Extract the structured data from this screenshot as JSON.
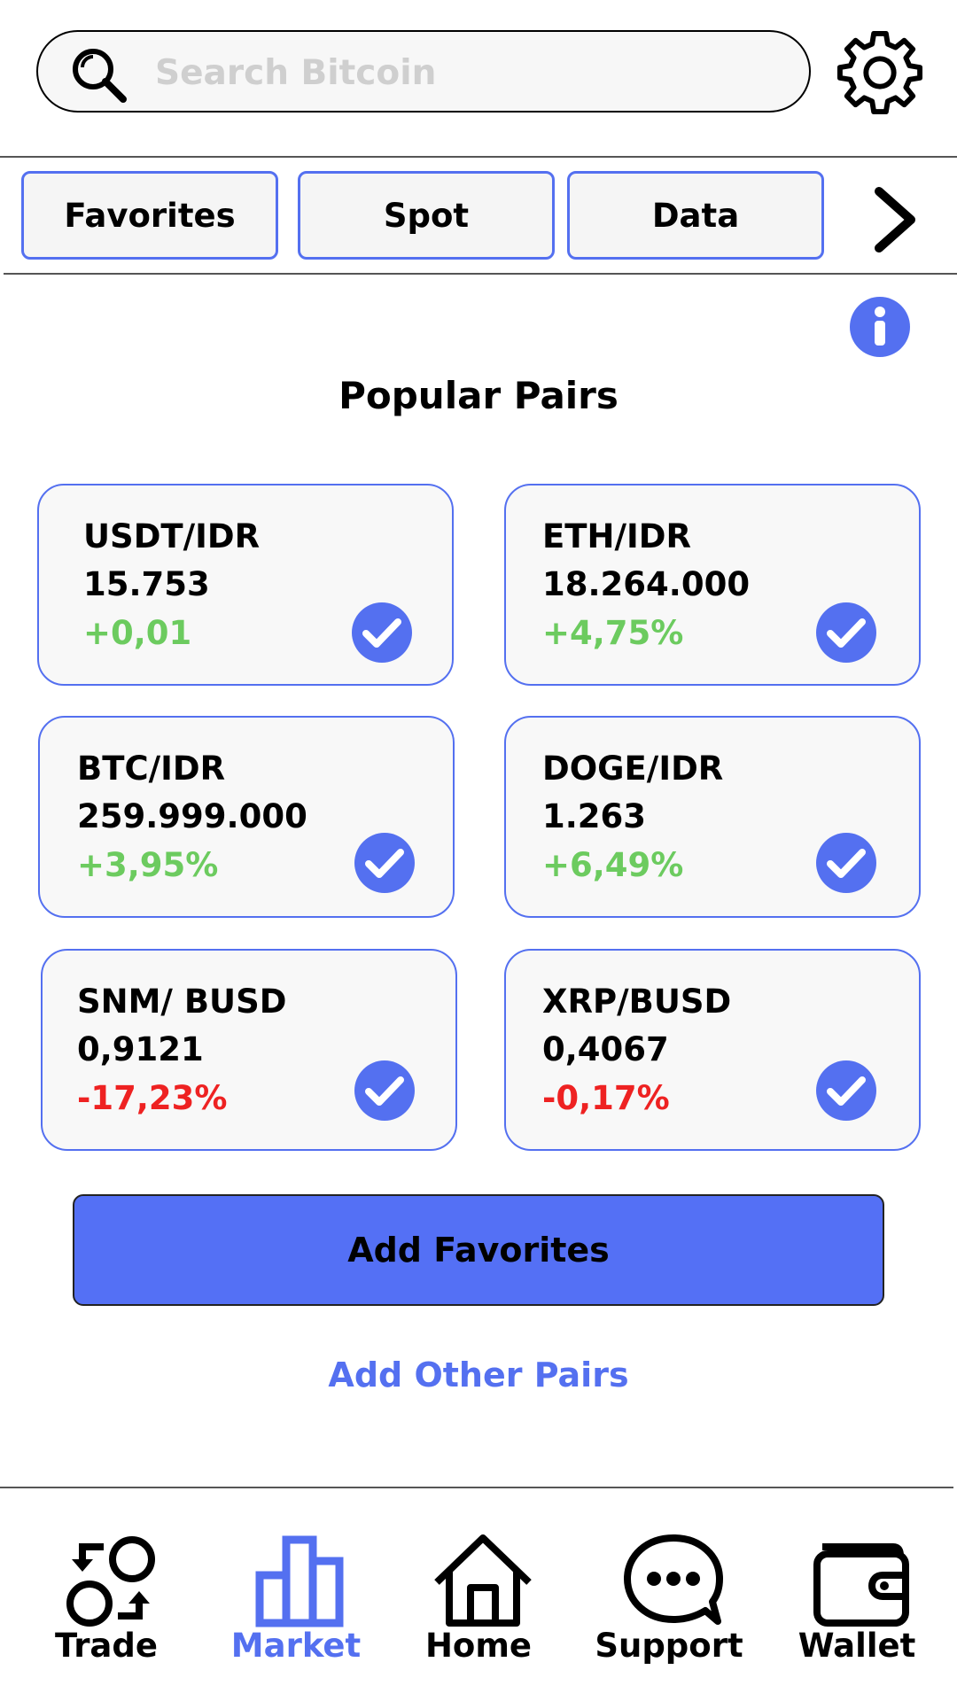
{
  "search": {
    "placeholder": "Search Bitcoin"
  },
  "tabs": [
    {
      "label": "Favorites"
    },
    {
      "label": "Spot"
    },
    {
      "label": "Data"
    }
  ],
  "section_title": "Popular Pairs",
  "pairs": [
    {
      "name": "USDT/IDR",
      "price": "15.753",
      "change": "+0,01",
      "direction": "up"
    },
    {
      "name": "ETH/IDR",
      "price": "18.264.000",
      "change": "+4,75%",
      "direction": "up"
    },
    {
      "name": "BTC/IDR",
      "price": "259.999.000",
      "change": "+3,95%",
      "direction": "up"
    },
    {
      "name": "DOGE/IDR",
      "price": "1.263",
      "change": "+6,49%",
      "direction": "up"
    },
    {
      "name": "SNM/ BUSD",
      "price": "0,9121",
      "change": "-17,23%",
      "direction": "down"
    },
    {
      "name": "XRP/BUSD",
      "price": "0,4067",
      "change": "-0,17%",
      "direction": "down"
    }
  ],
  "add_favorites_label": "Add Favorites",
  "add_other_pairs_label": "Add Other Pairs",
  "nav": [
    {
      "label": "Trade",
      "icon": "swap-icon"
    },
    {
      "label": "Market",
      "icon": "bar-chart-icon",
      "active": true
    },
    {
      "label": "Home",
      "icon": "home-icon"
    },
    {
      "label": "Support",
      "icon": "chat-bubble-icon"
    },
    {
      "label": "Wallet",
      "icon": "wallet-icon"
    }
  ],
  "colors": {
    "accent": "#5470f0",
    "positive": "#6ccb5f",
    "negative": "#ee2222",
    "placeholder": "#cfcfcf"
  }
}
